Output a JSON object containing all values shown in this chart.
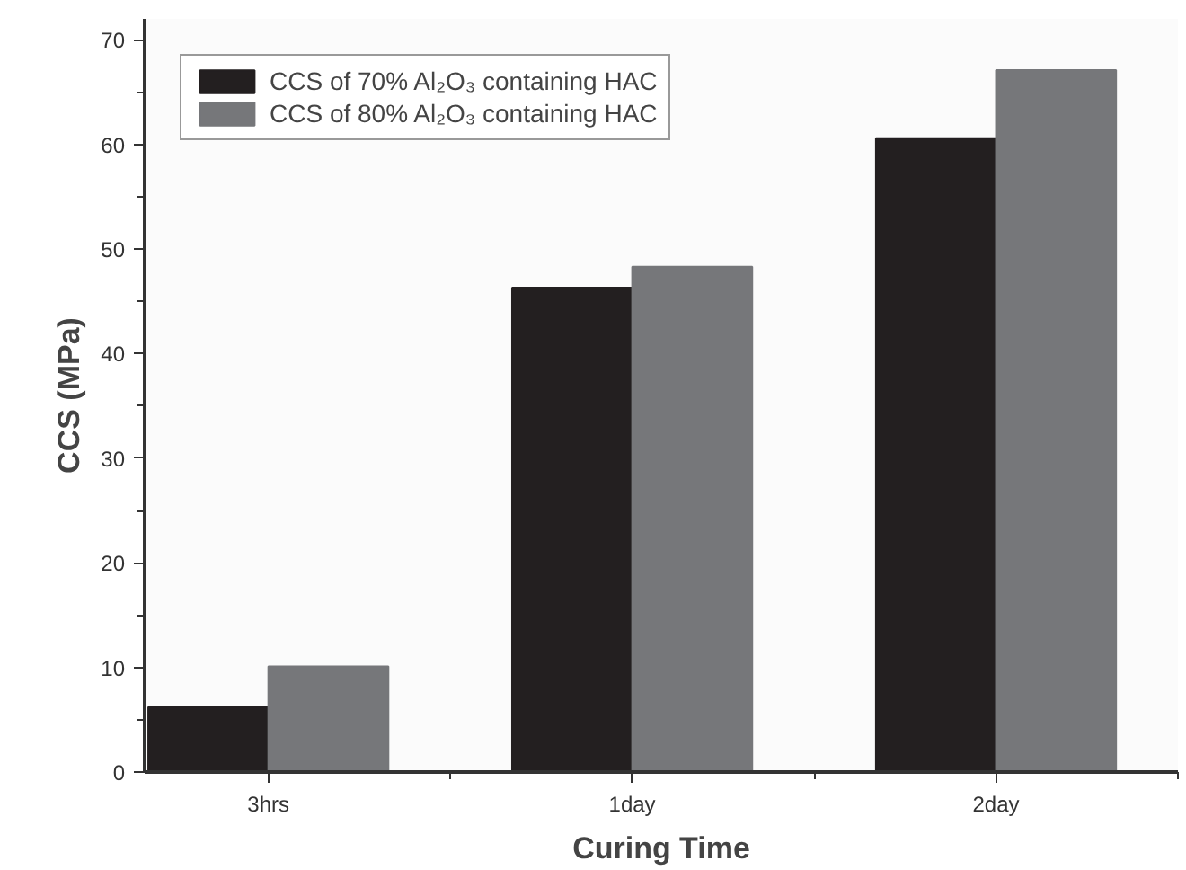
{
  "chart_data": {
    "type": "bar",
    "xlabel": "Curing Time",
    "ylabel": "CCS (MPa)",
    "categories": [
      "3hrs",
      "1day",
      "2day"
    ],
    "series": [
      {
        "name": "CCS of 70% Al₂O₃ containing HAC",
        "color": "#231f20",
        "values": [
          6.2,
          46.3,
          60.6
        ]
      },
      {
        "name": "CCS of 80% Al₂O₃ containing HAC",
        "color": "#76777a",
        "values": [
          10.1,
          48.3,
          67.1
        ]
      }
    ],
    "ylim": [
      0,
      72
    ],
    "yticks": [
      0,
      10,
      20,
      30,
      40,
      50,
      60,
      70
    ],
    "grid": false,
    "legend": "top left"
  }
}
